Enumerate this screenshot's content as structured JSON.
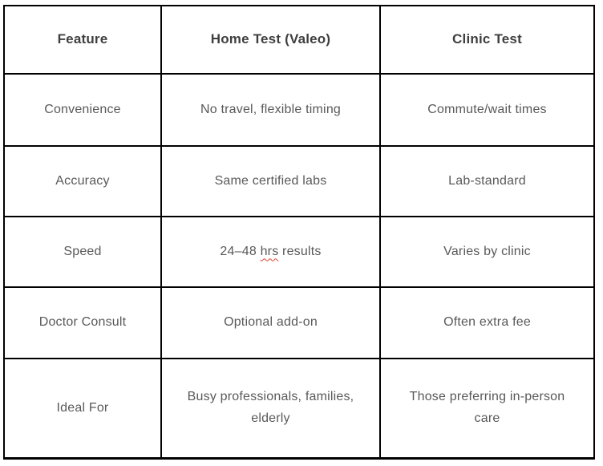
{
  "table": {
    "columns": [
      {
        "label": "Feature"
      },
      {
        "label": "Home Test (Valeo)"
      },
      {
        "label": "Clinic Test"
      }
    ],
    "rows": [
      {
        "feature": "Convenience",
        "home": "No travel, flexible timing",
        "clinic": "Commute/wait times"
      },
      {
        "feature": "Accuracy",
        "home": "Same certified labs",
        "clinic": "Lab-standard"
      },
      {
        "feature": "Speed",
        "home_before": "24–48 ",
        "home_misspelled_word": "hrs",
        "home_after": " results",
        "clinic": "Varies by clinic"
      },
      {
        "feature": "Doctor Consult",
        "home": "Optional add-on",
        "clinic": "Often extra fee"
      },
      {
        "feature": "Ideal For",
        "home": "Busy professionals, families, elderly",
        "clinic": "Those preferring in-person care"
      }
    ],
    "colors": {
      "border": "#000000",
      "header_text": "#3f3f3f",
      "body_text": "#595959",
      "spellcheck_underline": "#e0442e",
      "background": "#ffffff"
    }
  }
}
